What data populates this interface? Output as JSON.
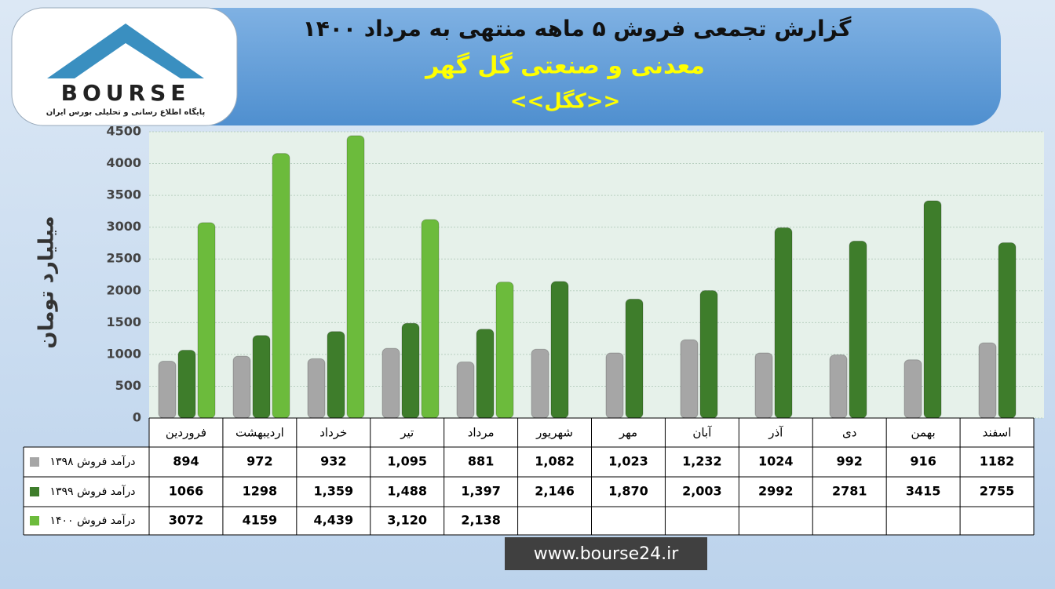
{
  "chart_data": {
    "type": "bar",
    "title": "گزارش تجمعی فروش ۵ ماهه منتهی به مرداد ۱۴۰۰",
    "subtitle": "معدنی و صنعتی گل گهر",
    "ticker": "<<کگل>>",
    "y_label": "میلیارد تومان",
    "categories": [
      "فروردین",
      "اردیبهشت",
      "خرداد",
      "تیر",
      "مرداد",
      "شهریور",
      "مهر",
      "آبان",
      "آذر",
      "دی",
      "بهمن",
      "اسفند"
    ],
    "series": [
      {
        "name": "درآمد فروش ۱۳۹۸",
        "color": "#a6a6a6",
        "values": [
          894,
          972,
          932,
          1095,
          881,
          1082,
          1023,
          1232,
          1024,
          992,
          916,
          1182
        ],
        "value_labels": [
          "894",
          "972",
          "932",
          "1,095",
          "881",
          "1,082",
          "1,023",
          "1,232",
          "1024",
          "992",
          "916",
          "1182"
        ]
      },
      {
        "name": "درآمد فروش ۱۳۹۹",
        "color": "#3e7d2b",
        "values": [
          1066,
          1298,
          1359,
          1488,
          1397,
          2146,
          1870,
          2003,
          2992,
          2781,
          3415,
          2755
        ],
        "value_labels": [
          "1066",
          "1298",
          "1,359",
          "1,488",
          "1,397",
          "2,146",
          "1,870",
          "2,003",
          "2992",
          "2781",
          "3415",
          "2755"
        ]
      },
      {
        "name": "درآمد فروش ۱۴۰۰",
        "color": "#6cbb3c",
        "values": [
          3072,
          4159,
          4439,
          3120,
          2138,
          null,
          null,
          null,
          null,
          null,
          null,
          null
        ],
        "value_labels": [
          "3072",
          "4159",
          "4,439",
          "3,120",
          "2,138",
          null,
          null,
          null,
          null,
          null,
          null,
          null
        ]
      }
    ],
    "ylim": [
      0,
      4500
    ],
    "yticks": [
      0,
      500,
      1000,
      1500,
      2000,
      2500,
      3000,
      3500,
      4000,
      4500
    ],
    "grid": true
  },
  "logo": {
    "text": "BOURSE",
    "caption": "پایگاه اطلاع رسانی و تحلیلی بورس ایران"
  },
  "footer": "www.bourse24.ir"
}
